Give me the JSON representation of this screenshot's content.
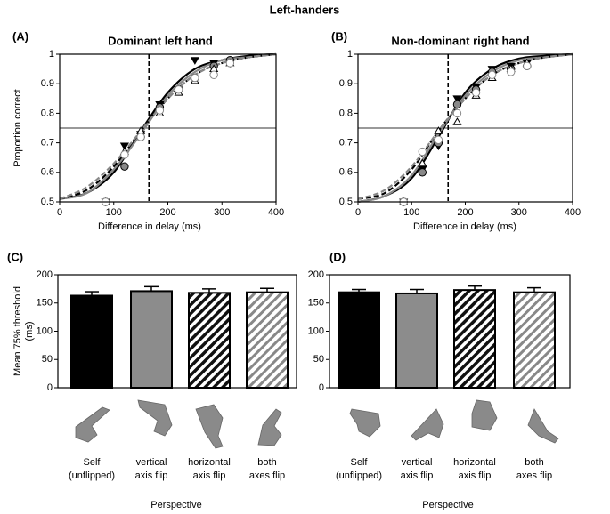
{
  "title": "Left-handers",
  "chart_data": [
    {
      "type": "scatter",
      "panel": "(A)",
      "title": "Dominant left hand",
      "xlabel": "Difference in delay (ms)",
      "ylabel": "Proportion correct",
      "xlim": [
        0,
        400
      ],
      "xticks": [
        0,
        100,
        200,
        300,
        400
      ],
      "ylim": [
        0.5,
        1.0
      ],
      "yticks": [
        0.5,
        0.6,
        0.7,
        0.8,
        0.9,
        1.0
      ],
      "hlines": [
        0.75
      ],
      "vlines": [
        165
      ],
      "x": [
        85,
        120,
        150,
        185,
        220,
        250,
        285,
        315
      ],
      "fit_x": [
        0,
        50,
        100,
        150,
        200,
        250,
        300,
        350,
        400
      ],
      "series": [
        {
          "color": "#000000",
          "marker": "triangle-down",
          "open": false,
          "dash": false,
          "values": [
            0.5,
            0.69,
            0.73,
            0.83,
            0.88,
            0.98,
            0.97,
            0.97
          ],
          "fit": [
            0.51,
            0.53,
            0.6,
            0.74,
            0.87,
            0.95,
            0.98,
            0.995,
            1.0
          ]
        },
        {
          "color": "#888888",
          "marker": "circle",
          "open": false,
          "dash": false,
          "values": [
            0.5,
            0.62,
            0.72,
            0.82,
            0.88,
            0.92,
            0.96,
            0.98
          ],
          "fit": [
            0.51,
            0.53,
            0.61,
            0.73,
            0.86,
            0.94,
            0.98,
            0.99,
            1.0
          ]
        },
        {
          "color": "#000000",
          "marker": "triangle-up",
          "open": true,
          "dash": true,
          "values": [
            0.5,
            0.67,
            0.74,
            0.8,
            0.87,
            0.91,
            0.95,
            0.97
          ],
          "fit": [
            0.51,
            0.54,
            0.62,
            0.74,
            0.85,
            0.93,
            0.97,
            0.99,
            1.0
          ]
        },
        {
          "color": "#888888",
          "marker": "circle",
          "open": true,
          "dash": true,
          "values": [
            0.5,
            0.66,
            0.72,
            0.81,
            0.88,
            0.92,
            0.93,
            0.97
          ],
          "fit": [
            0.51,
            0.55,
            0.63,
            0.74,
            0.85,
            0.93,
            0.97,
            0.99,
            1.0
          ]
        }
      ]
    },
    {
      "type": "scatter",
      "panel": "(B)",
      "title": "Non-dominant right hand",
      "xlabel": "Difference in delay (ms)",
      "xlim": [
        0,
        400
      ],
      "xticks": [
        0,
        100,
        200,
        300,
        400
      ],
      "ylim": [
        0.5,
        1.0
      ],
      "yticks": [
        0.5,
        0.6,
        0.7,
        0.8,
        0.9,
        1.0
      ],
      "hlines": [
        0.75
      ],
      "vlines": [
        168
      ],
      "x": [
        85,
        120,
        150,
        185,
        220,
        250,
        285,
        315
      ],
      "fit_x": [
        0,
        50,
        100,
        150,
        200,
        250,
        300,
        350,
        400
      ],
      "series": [
        {
          "color": "#000000",
          "marker": "triangle-down",
          "open": false,
          "dash": false,
          "values": [
            0.5,
            0.61,
            0.69,
            0.85,
            0.89,
            0.95,
            0.96,
            0.97
          ],
          "fit": [
            0.5,
            0.52,
            0.58,
            0.72,
            0.87,
            0.95,
            0.985,
            0.995,
            1.0
          ]
        },
        {
          "color": "#888888",
          "marker": "circle",
          "open": false,
          "dash": false,
          "values": [
            0.5,
            0.6,
            0.7,
            0.83,
            0.88,
            0.94,
            0.95,
            0.96
          ],
          "fit": [
            0.5,
            0.52,
            0.59,
            0.73,
            0.86,
            0.94,
            0.98,
            0.99,
            1.0
          ]
        },
        {
          "color": "#000000",
          "marker": "triangle-up",
          "open": true,
          "dash": true,
          "values": [
            0.5,
            0.63,
            0.74,
            0.77,
            0.86,
            0.92,
            0.95,
            0.97
          ],
          "fit": [
            0.51,
            0.53,
            0.61,
            0.74,
            0.85,
            0.93,
            0.97,
            0.99,
            1.0
          ]
        },
        {
          "color": "#888888",
          "marker": "circle",
          "open": true,
          "dash": true,
          "values": [
            0.5,
            0.67,
            0.71,
            0.8,
            0.87,
            0.93,
            0.94,
            0.96
          ],
          "fit": [
            0.51,
            0.54,
            0.62,
            0.74,
            0.85,
            0.93,
            0.97,
            0.99,
            1.0
          ]
        }
      ]
    },
    {
      "type": "bar",
      "panel": "(C)",
      "ylabel": [
        "Mean 75% threshold",
        "(ms)"
      ],
      "xlabel": "Perspective",
      "categories": [
        [
          "Self",
          "(unflipped)"
        ],
        [
          "vertical",
          "axis flip"
        ],
        [
          "horizontal",
          "axis flip"
        ],
        [
          "both",
          "axes flip"
        ]
      ],
      "values": [
        163,
        171,
        168,
        169
      ],
      "errors": [
        7,
        8,
        7,
        7
      ],
      "styles": [
        "black",
        "gray",
        "hatch-dark",
        "hatch-light"
      ],
      "ylim": [
        0,
        200
      ],
      "yticks": [
        0,
        50,
        100,
        150,
        200
      ]
    },
    {
      "type": "bar",
      "panel": "(D)",
      "xlabel": "Perspective",
      "categories": [
        [
          "Self",
          "(unflipped)"
        ],
        [
          "vertical",
          "axis flip"
        ],
        [
          "horizontal",
          "axis flip"
        ],
        [
          "both",
          "axes flip"
        ]
      ],
      "values": [
        169,
        167,
        173,
        169
      ],
      "errors": [
        5,
        7,
        7,
        8
      ],
      "styles": [
        "black",
        "gray",
        "hatch-dark",
        "hatch-light"
      ],
      "ylim": [
        0,
        200
      ],
      "yticks": [
        0,
        50,
        100,
        150,
        200
      ]
    }
  ]
}
